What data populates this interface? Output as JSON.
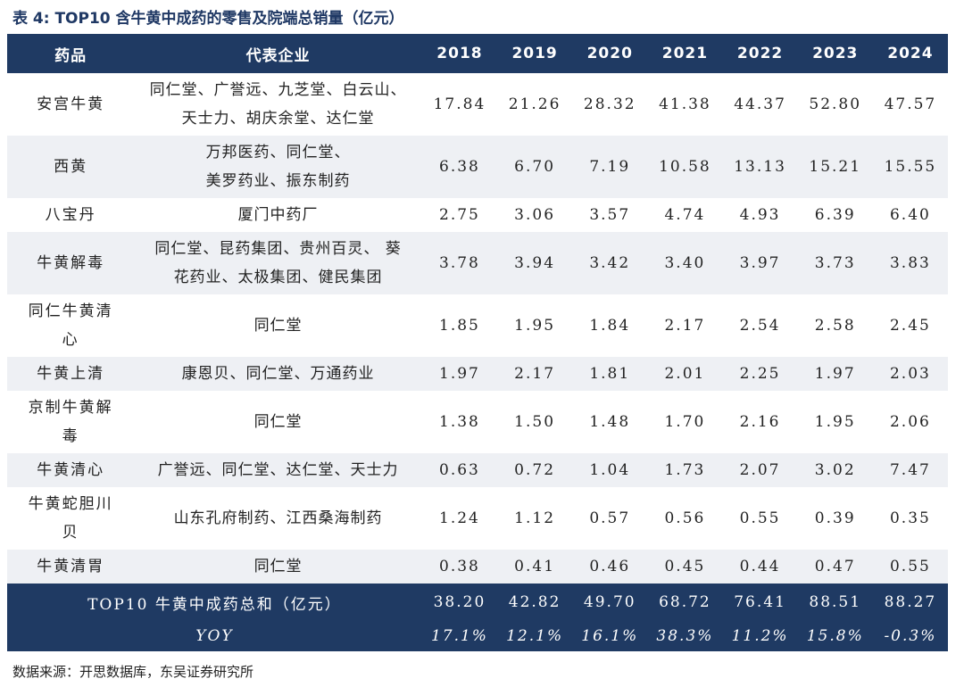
{
  "title": "表 4:  TOP10 含牛黄中成药的零售及院端总销量（亿元）",
  "headers": {
    "drug": "药品",
    "companies": "代表企业",
    "years": [
      "2018",
      "2019",
      "2020",
      "2021",
      "2022",
      "2023",
      "2024"
    ]
  },
  "rows": [
    {
      "drug": [
        "安宫牛黄"
      ],
      "companies": [
        "同仁堂、广誉远、九芝堂、白云山、",
        "天士力、胡庆余堂、达仁堂"
      ],
      "values": [
        "17.84",
        "21.26",
        "28.32",
        "41.38",
        "44.37",
        "52.80",
        "47.57"
      ]
    },
    {
      "drug": [
        "西黄"
      ],
      "companies": [
        "万邦医药、同仁堂、",
        "美罗药业、振东制药"
      ],
      "values": [
        "6.38",
        "6.70",
        "7.19",
        "10.58",
        "13.13",
        "15.21",
        "15.55"
      ]
    },
    {
      "drug": [
        "八宝丹"
      ],
      "companies": [
        "厦门中药厂"
      ],
      "values": [
        "2.75",
        "3.06",
        "3.57",
        "4.74",
        "4.93",
        "6.39",
        "6.40"
      ]
    },
    {
      "drug": [
        "牛黄解毒"
      ],
      "companies": [
        "同仁堂、昆药集团、贵州百灵、 葵",
        "花药业、太极集团、健民集团"
      ],
      "values": [
        "3.78",
        "3.94",
        "3.42",
        "3.40",
        "3.97",
        "3.73",
        "3.83"
      ]
    },
    {
      "drug": [
        "同仁牛黄清",
        "心"
      ],
      "companies": [
        "同仁堂"
      ],
      "values": [
        "1.85",
        "1.95",
        "1.84",
        "2.17",
        "2.54",
        "2.58",
        "2.45"
      ]
    },
    {
      "drug": [
        "牛黄上清"
      ],
      "companies": [
        "康恩贝、同仁堂、万通药业"
      ],
      "values": [
        "1.97",
        "2.17",
        "1.81",
        "2.01",
        "2.25",
        "1.97",
        "2.03"
      ]
    },
    {
      "drug": [
        "京制牛黄解",
        "毒"
      ],
      "companies": [
        "同仁堂"
      ],
      "values": [
        "1.38",
        "1.50",
        "1.48",
        "1.70",
        "2.16",
        "1.95",
        "2.06"
      ]
    },
    {
      "drug": [
        "牛黄清心"
      ],
      "companies": [
        "广誉远、同仁堂、达仁堂、天士力"
      ],
      "values": [
        "0.63",
        "0.72",
        "1.04",
        "1.73",
        "2.07",
        "3.02",
        "7.47"
      ]
    },
    {
      "drug": [
        "牛黄蛇胆川",
        "贝"
      ],
      "companies": [
        "山东孔府制药、江西桑海制药"
      ],
      "values": [
        "1.24",
        "1.12",
        "0.57",
        "0.56",
        "0.55",
        "0.39",
        "0.35"
      ]
    },
    {
      "drug": [
        "牛黄清胃"
      ],
      "companies": [
        "同仁堂"
      ],
      "values": [
        "0.38",
        "0.41",
        "0.46",
        "0.45",
        "0.44",
        "0.47",
        "0.55"
      ]
    }
  ],
  "total": {
    "label": "TOP10 牛黄中成药总和（亿元）",
    "values": [
      "38.20",
      "42.82",
      "49.70",
      "68.72",
      "76.41",
      "88.51",
      "88.27"
    ]
  },
  "yoy": {
    "label": "YOY",
    "values": [
      "17.1%",
      "12.1%",
      "16.1%",
      "38.3%",
      "11.2%",
      "15.8%",
      "-0.3%"
    ]
  },
  "source": "数据来源：开思数据库，东吴证券研究所"
}
